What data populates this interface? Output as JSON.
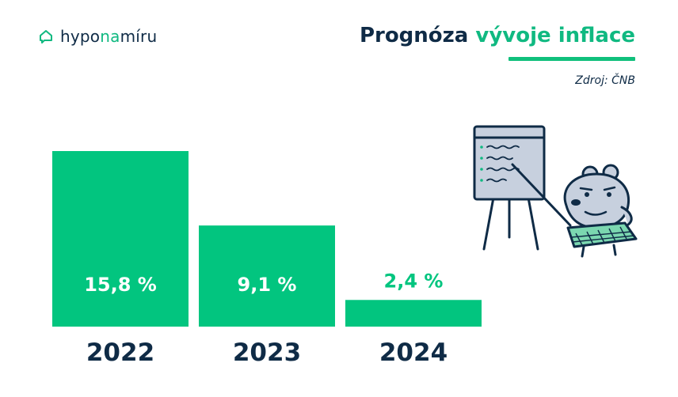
{
  "brand": {
    "name_prefix": "hypo",
    "name_accent": "na",
    "name_suffix": "míru"
  },
  "title": {
    "part1": "Prognóza",
    "part2": "vývoje inflace"
  },
  "source": "Zdroj: ČNB",
  "colors": {
    "bar": "#02c57f",
    "navy": "#0f2b46",
    "label_inside": "#ffffff",
    "label_outside": "#02c57f"
  },
  "chart_data": {
    "type": "bar",
    "title": "Prognóza vývoje inflace",
    "categories": [
      "2022",
      "2023",
      "2024"
    ],
    "values": [
      15.8,
      9.1,
      2.4
    ],
    "value_labels": [
      "15,8 %",
      "9,1 %",
      "2,4 %"
    ],
    "xlabel": "",
    "ylabel": "",
    "grid": false,
    "legend": "none"
  }
}
